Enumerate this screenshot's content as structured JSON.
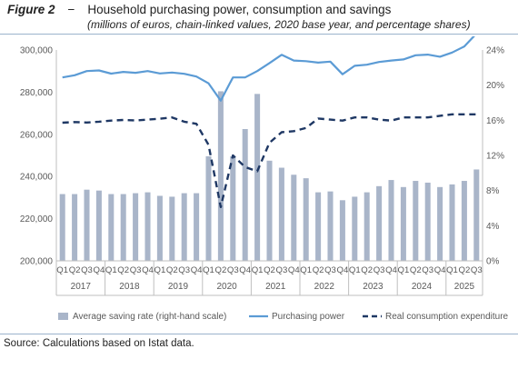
{
  "figure": {
    "label": "Figure 2",
    "separator": "−",
    "title": "Household purchasing power, consumption and savings",
    "subtitle": "(millions of euros, chain-linked values, 2020 base year, and percentage shares)"
  },
  "source": "Source: Calculations based on Istat data.",
  "colors": {
    "bars": "#a9b5c9",
    "purchasing_power": "#5b9bd5",
    "consumption": "#1f3864",
    "axis": "#bfbfbf",
    "text": "#595959"
  },
  "chart_data": {
    "type": "bar",
    "title": "Household purchasing power, consumption and savings",
    "categories": [
      "Q1",
      "Q2",
      "Q3",
      "Q4",
      "Q1",
      "Q2",
      "Q3",
      "Q4",
      "Q1",
      "Q2",
      "Q3",
      "Q4",
      "Q1",
      "Q2",
      "Q3",
      "Q4",
      "Q1",
      "Q2",
      "Q3",
      "Q4",
      "Q1",
      "Q2",
      "Q3",
      "Q4",
      "Q1",
      "Q2",
      "Q3",
      "Q4",
      "Q1",
      "Q2",
      "Q3",
      "Q4",
      "Q1",
      "Q2",
      "Q3"
    ],
    "years": [
      {
        "label": "2017",
        "quarters": 4
      },
      {
        "label": "2018",
        "quarters": 4
      },
      {
        "label": "2019",
        "quarters": 4
      },
      {
        "label": "2020",
        "quarters": 4
      },
      {
        "label": "2021",
        "quarters": 4
      },
      {
        "label": "2022",
        "quarters": 4
      },
      {
        "label": "2023",
        "quarters": 4
      },
      {
        "label": "2024",
        "quarters": 4
      },
      {
        "label": "2025",
        "quarters": 3
      }
    ],
    "y_left": {
      "min": 200000,
      "max": 300000,
      "step": 20000,
      "ticks": [
        "200,000",
        "220,000",
        "240,000",
        "260,000",
        "280,000",
        "300,000"
      ]
    },
    "y_right": {
      "min": 0,
      "max": 24,
      "step": 4,
      "ticks": [
        "0%",
        "4%",
        "8%",
        "12%",
        "16%",
        "20%",
        "24%"
      ]
    },
    "series": [
      {
        "name": "Average saving rate (right-hand scale)",
        "type": "bar",
        "axis": "right",
        "values": [
          7.6,
          7.6,
          8.1,
          8.0,
          7.6,
          7.6,
          7.7,
          7.8,
          7.4,
          7.3,
          7.7,
          7.7,
          11.9,
          19.3,
          11.9,
          15.0,
          19.0,
          11.4,
          10.6,
          9.8,
          9.4,
          7.8,
          7.9,
          6.9,
          7.3,
          7.8,
          8.5,
          9.2,
          8.4,
          9.1,
          8.9,
          8.4,
          8.7,
          9.1,
          10.4
        ]
      },
      {
        "name": "Purchasing power",
        "type": "line",
        "axis": "left",
        "values": [
          287000,
          288000,
          290000,
          290300,
          288800,
          289600,
          289200,
          290000,
          288900,
          289300,
          288700,
          287400,
          284200,
          276000,
          287000,
          287000,
          290000,
          293800,
          297700,
          295000,
          294700,
          294000,
          294500,
          288500,
          292500,
          293000,
          294300,
          295000,
          295500,
          297500,
          297800,
          296800,
          298800,
          301700,
          307800
        ]
      },
      {
        "name": "Real consumption expenditure",
        "type": "line",
        "axis": "left",
        "dashed": true,
        "values": [
          265500,
          265800,
          265600,
          266000,
          266500,
          266800,
          266600,
          267000,
          267400,
          268000,
          266000,
          265000,
          255000,
          225500,
          250000,
          244500,
          242500,
          256000,
          261000,
          261500,
          263000,
          267500,
          267000,
          266500,
          268000,
          268000,
          267000,
          266500,
          268000,
          268000,
          268000,
          268800,
          269500,
          269500,
          269500
        ]
      }
    ],
    "legend_position": "bottom",
    "grid": false
  }
}
